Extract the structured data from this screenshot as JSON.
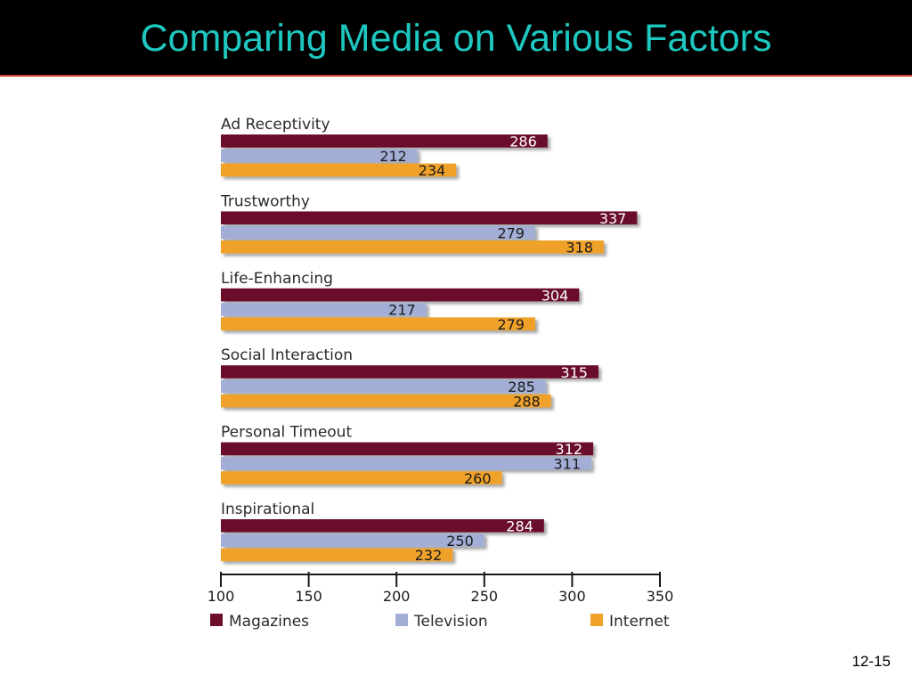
{
  "slide": {
    "title": "Comparing Media on Various Factors",
    "page_number": "12-15"
  },
  "chart_data": {
    "type": "bar",
    "orientation": "horizontal",
    "categories": [
      "Ad Receptivity",
      "Trustworthy",
      "Life-Enhancing",
      "Social Interaction",
      "Personal Timeout",
      "Inspirational"
    ],
    "series": [
      {
        "name": "Magazines",
        "color": "#6b0f2a",
        "label_color": "#ffffff",
        "values": [
          286,
          337,
          304,
          315,
          312,
          284
        ]
      },
      {
        "name": "Television",
        "color": "#a3aed6",
        "label_color": "#1a1a1a",
        "values": [
          212,
          279,
          217,
          285,
          311,
          250
        ]
      },
      {
        "name": "Internet",
        "color": "#f0a12a",
        "label_color": "#1a1a1a",
        "values": [
          234,
          318,
          279,
          288,
          260,
          232
        ]
      }
    ],
    "xlim": [
      100,
      350
    ],
    "xticks": [
      100,
      150,
      200,
      250,
      300,
      350
    ],
    "grid": false,
    "legend": "bottom",
    "data_labels": true
  }
}
